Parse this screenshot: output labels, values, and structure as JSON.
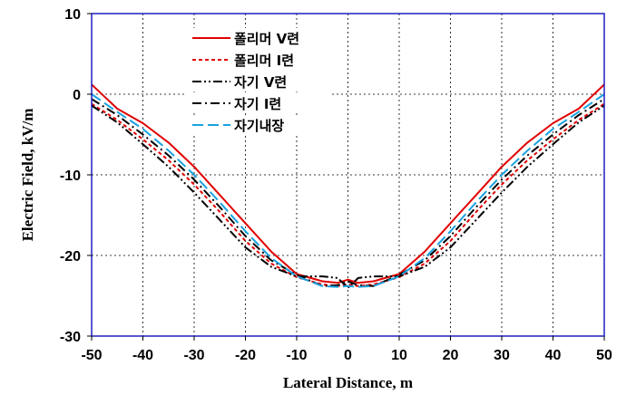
{
  "chart_data": {
    "type": "line",
    "title": "",
    "xlabel": "Lateral Distance, m",
    "ylabel": "Electric  Field, kV/m",
    "xlim": [
      -50,
      50
    ],
    "ylim": [
      -30,
      10
    ],
    "xticks": [
      -50,
      -40,
      -30,
      -20,
      -10,
      0,
      10,
      20,
      30,
      40,
      50
    ],
    "yticks": [
      10,
      0,
      -10,
      -20,
      -30
    ],
    "grid": true,
    "legend_position": "top-left",
    "x": [
      -50,
      -45,
      -40,
      -35,
      -30,
      -25,
      -20,
      -15,
      -10,
      -5,
      -2,
      0,
      2,
      5,
      10,
      15,
      20,
      25,
      30,
      35,
      40,
      45,
      50
    ],
    "series": [
      {
        "name": "폴리머 V련",
        "color": "#e00000",
        "dash": "solid",
        "values": [
          1.2,
          -1.8,
          -3.6,
          -6.0,
          -9.0,
          -12.5,
          -16.0,
          -19.5,
          -22.3,
          -23.2,
          -23.4,
          -23.0,
          -23.4,
          -23.2,
          -22.3,
          -19.5,
          -16.0,
          -12.5,
          -9.0,
          -6.0,
          -3.6,
          -1.8,
          1.2
        ]
      },
      {
        "name": "폴리머 I련",
        "color": "#e00000",
        "dash": "4 3",
        "values": [
          -1.2,
          -3.2,
          -5.6,
          -8.2,
          -11.2,
          -14.6,
          -18.2,
          -21.0,
          -22.7,
          -23.6,
          -23.8,
          -23.6,
          -23.8,
          -23.6,
          -22.7,
          -21.0,
          -18.2,
          -14.6,
          -11.2,
          -8.2,
          -5.6,
          -3.2,
          -1.2
        ]
      },
      {
        "name": "자기 V련",
        "color": "#000000",
        "dash": "10 3 2 3 2 3",
        "values": [
          -1.4,
          -3.5,
          -6.2,
          -9.0,
          -12.2,
          -15.6,
          -19.0,
          -21.4,
          -22.6,
          -22.6,
          -22.8,
          -24.0,
          -22.8,
          -22.6,
          -22.6,
          -21.4,
          -19.0,
          -15.6,
          -12.2,
          -9.0,
          -6.2,
          -3.5,
          -1.4
        ]
      },
      {
        "name": "자기 I련",
        "color": "#000000",
        "dash": "10 4 2 4",
        "values": [
          -0.6,
          -2.6,
          -5.0,
          -7.6,
          -10.6,
          -14.0,
          -17.6,
          -20.6,
          -22.4,
          -23.8,
          -23.7,
          -23.2,
          -23.7,
          -23.8,
          -22.4,
          -20.6,
          -17.6,
          -14.0,
          -10.6,
          -7.6,
          -5.0,
          -2.6,
          -0.6
        ]
      },
      {
        "name": "자기내장",
        "color": "#19a2e0",
        "dash": "12 5",
        "values": [
          0.0,
          -2.2,
          -4.3,
          -7.0,
          -10.0,
          -13.4,
          -17.0,
          -20.3,
          -22.6,
          -23.8,
          -23.9,
          -23.8,
          -23.9,
          -23.8,
          -22.6,
          -20.3,
          -17.0,
          -13.4,
          -10.0,
          -7.0,
          -4.3,
          -2.2,
          0.0
        ]
      }
    ]
  }
}
